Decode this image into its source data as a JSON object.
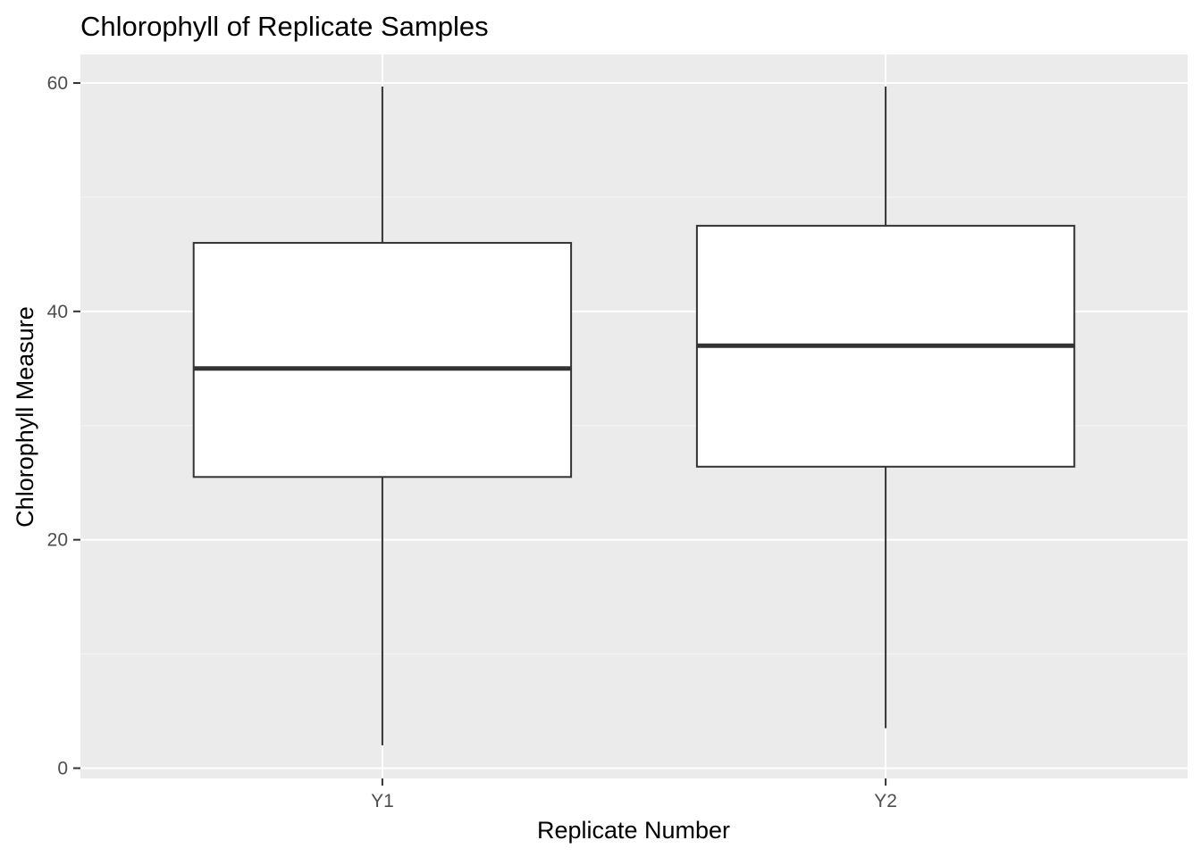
{
  "chart_data": {
    "type": "box",
    "title": "Chlorophyll of Replicate Samples",
    "xlabel": "Replicate Number",
    "ylabel": "Chlorophyll Measure",
    "ylim": [
      -0.9,
      62.5
    ],
    "y_ticks": [
      0,
      20,
      40,
      60
    ],
    "categories": [
      "Y1",
      "Y2"
    ],
    "boxes": [
      {
        "category": "Y1",
        "min": 2.0,
        "q1": 25.5,
        "median": 35.0,
        "q3": 46.0,
        "max": 59.7
      },
      {
        "category": "Y2",
        "min": 3.5,
        "q1": 26.4,
        "median": 37.0,
        "q3": 47.5,
        "max": 59.7
      }
    ],
    "grid": true,
    "colors": {
      "panel_background": "#ebebeb",
      "grid_major": "#ffffff",
      "grid_minor": "#f5f5f5",
      "box_fill": "#ffffff",
      "box_stroke": "#333333",
      "tick_text": "#4d4d4d"
    }
  }
}
